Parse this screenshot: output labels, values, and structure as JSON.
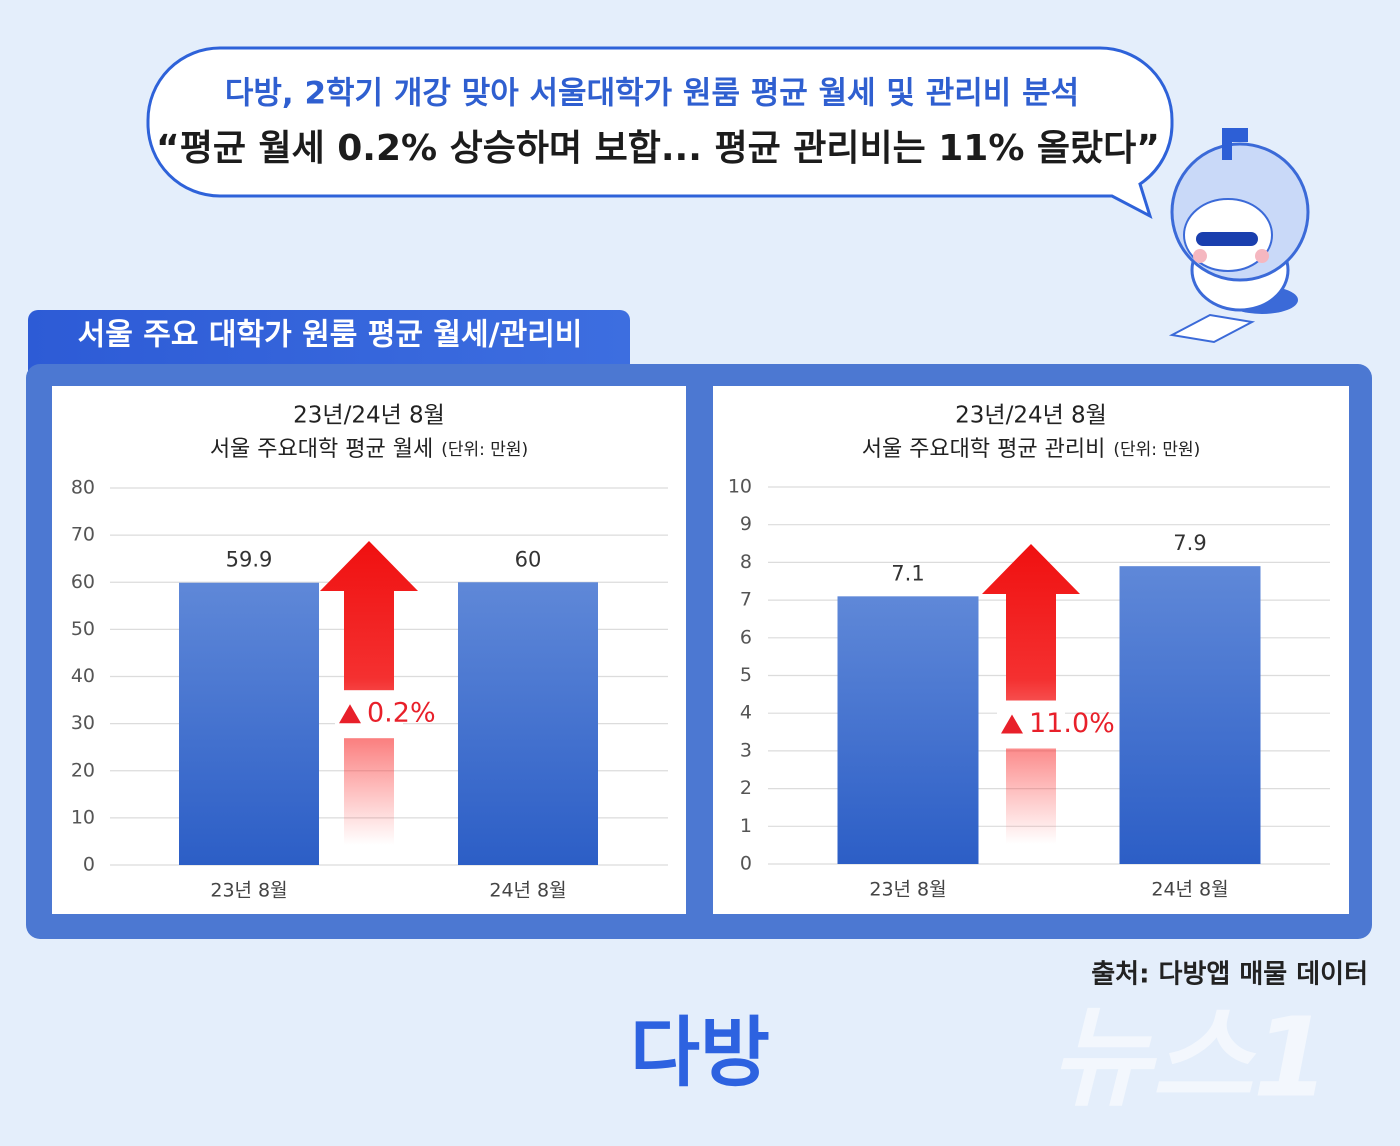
{
  "header": {
    "line1": "다방, 2학기 개강 맞아 서울대학가 원룸 평균 월세 및 관리비 분석",
    "line2": "“평균 월세 0.2% 상승하며 보합... 평균 관리비는 11% 올랐다”"
  },
  "panel_title": "서울 주요 대학가 원룸 평균 월세/관리비",
  "chart_data": [
    {
      "type": "bar",
      "title": "23년/24년 8월",
      "subtitle": "서울 주요대학 평균 월세",
      "unit": "(단위: 만원)",
      "categories": [
        "23년 8월",
        "24년 8월"
      ],
      "values": [
        59.9,
        60
      ],
      "color": "#3d6dcc",
      "ylim": [
        0,
        80
      ],
      "yticks": [
        0,
        10,
        20,
        30,
        40,
        50,
        60,
        70,
        80
      ],
      "grid": true,
      "annotation": "0.2%"
    },
    {
      "type": "bar",
      "title": "23년/24년 8월",
      "subtitle": "서울 주요대학 평균 관리비",
      "unit": "(단위: 만원)",
      "categories": [
        "23년 8월",
        "24년 8월"
      ],
      "values": [
        7.1,
        7.9
      ],
      "color": "#3d6dcc",
      "ylim": [
        0,
        10
      ],
      "yticks": [
        0,
        1,
        2,
        3,
        4,
        5,
        6,
        7,
        8,
        9,
        10
      ],
      "grid": true,
      "annotation": "11.0%"
    }
  ],
  "source": "출처: 다방앱 매물 데이터",
  "logo": "다방",
  "watermark": "뉴스1"
}
